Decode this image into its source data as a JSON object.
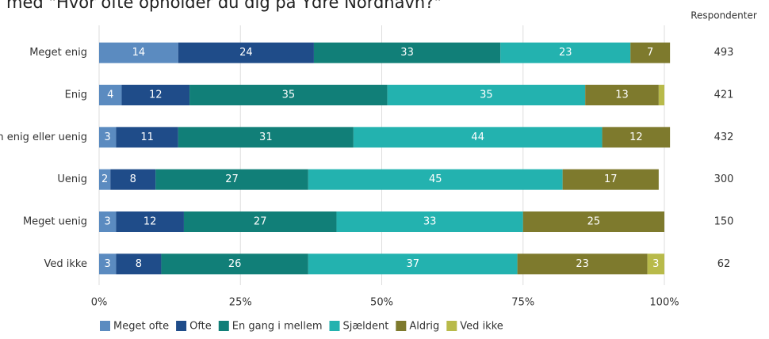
{
  "chart_data": {
    "type": "stacked_bar_horizontal",
    "title": "med \"Hvor ofte opholder du dig på Ydre Nordhavn?\"",
    "categories": [
      "Meget enig",
      "Enig",
      "Hverken enig eller uenig",
      "Uenig",
      "Meget uenig",
      "Ved ikke"
    ],
    "series": [
      {
        "name": "Meget ofte",
        "color": "#5b8bc0",
        "values": [
          14,
          4,
          3,
          2,
          3,
          3
        ]
      },
      {
        "name": "Ofte",
        "color": "#1f4c89",
        "values": [
          24,
          12,
          11,
          8,
          12,
          8
        ]
      },
      {
        "name": "En gang i mellem",
        "color": "#117f78",
        "values": [
          33,
          35,
          31,
          27,
          27,
          26
        ]
      },
      {
        "name": "Sjældent",
        "color": "#23b2af",
        "values": [
          23,
          35,
          44,
          45,
          33,
          37
        ]
      },
      {
        "name": "Aldrig",
        "color": "#7e7a2d",
        "values": [
          7,
          13,
          12,
          17,
          25,
          23
        ]
      },
      {
        "name": "Ved ikke",
        "color": "#b8ba4a",
        "values": [
          0,
          1,
          0,
          0,
          0,
          3
        ]
      }
    ],
    "xlim": [
      0,
      100
    ],
    "xticks": [
      {
        "value": 0,
        "label": "0%"
      },
      {
        "value": 25,
        "label": "25%"
      },
      {
        "value": 50,
        "label": "50%"
      },
      {
        "value": 75,
        "label": "75%"
      },
      {
        "value": 100,
        "label": "100%"
      }
    ],
    "grid": true,
    "respondents": {
      "label": "Respondenter",
      "values": [
        493,
        421,
        432,
        300,
        150,
        62
      ]
    }
  }
}
